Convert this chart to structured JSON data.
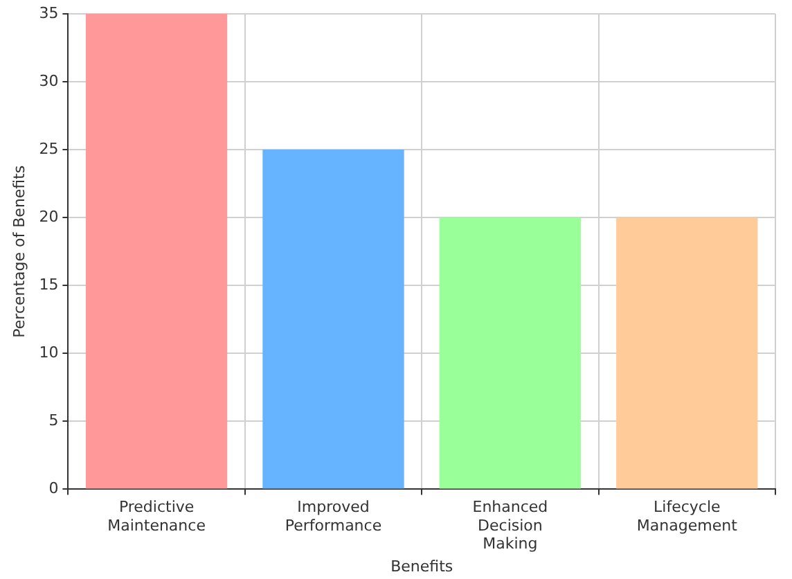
{
  "chart_data": {
    "type": "bar",
    "xlabel": "Benefits",
    "ylabel": "Percentage of Benefits",
    "categories": [
      "Predictive Maintenance",
      "Improved Performance",
      "Enhanced Decision Making",
      "Lifecycle Management"
    ],
    "values": [
      35,
      25,
      20,
      20
    ],
    "colors": [
      "#ff9999",
      "#66b3ff",
      "#99ff99",
      "#ffcc99"
    ],
    "ylim": [
      0,
      35
    ],
    "yticks": [
      0,
      5,
      10,
      15,
      20,
      25,
      30,
      35
    ],
    "grid": true
  }
}
